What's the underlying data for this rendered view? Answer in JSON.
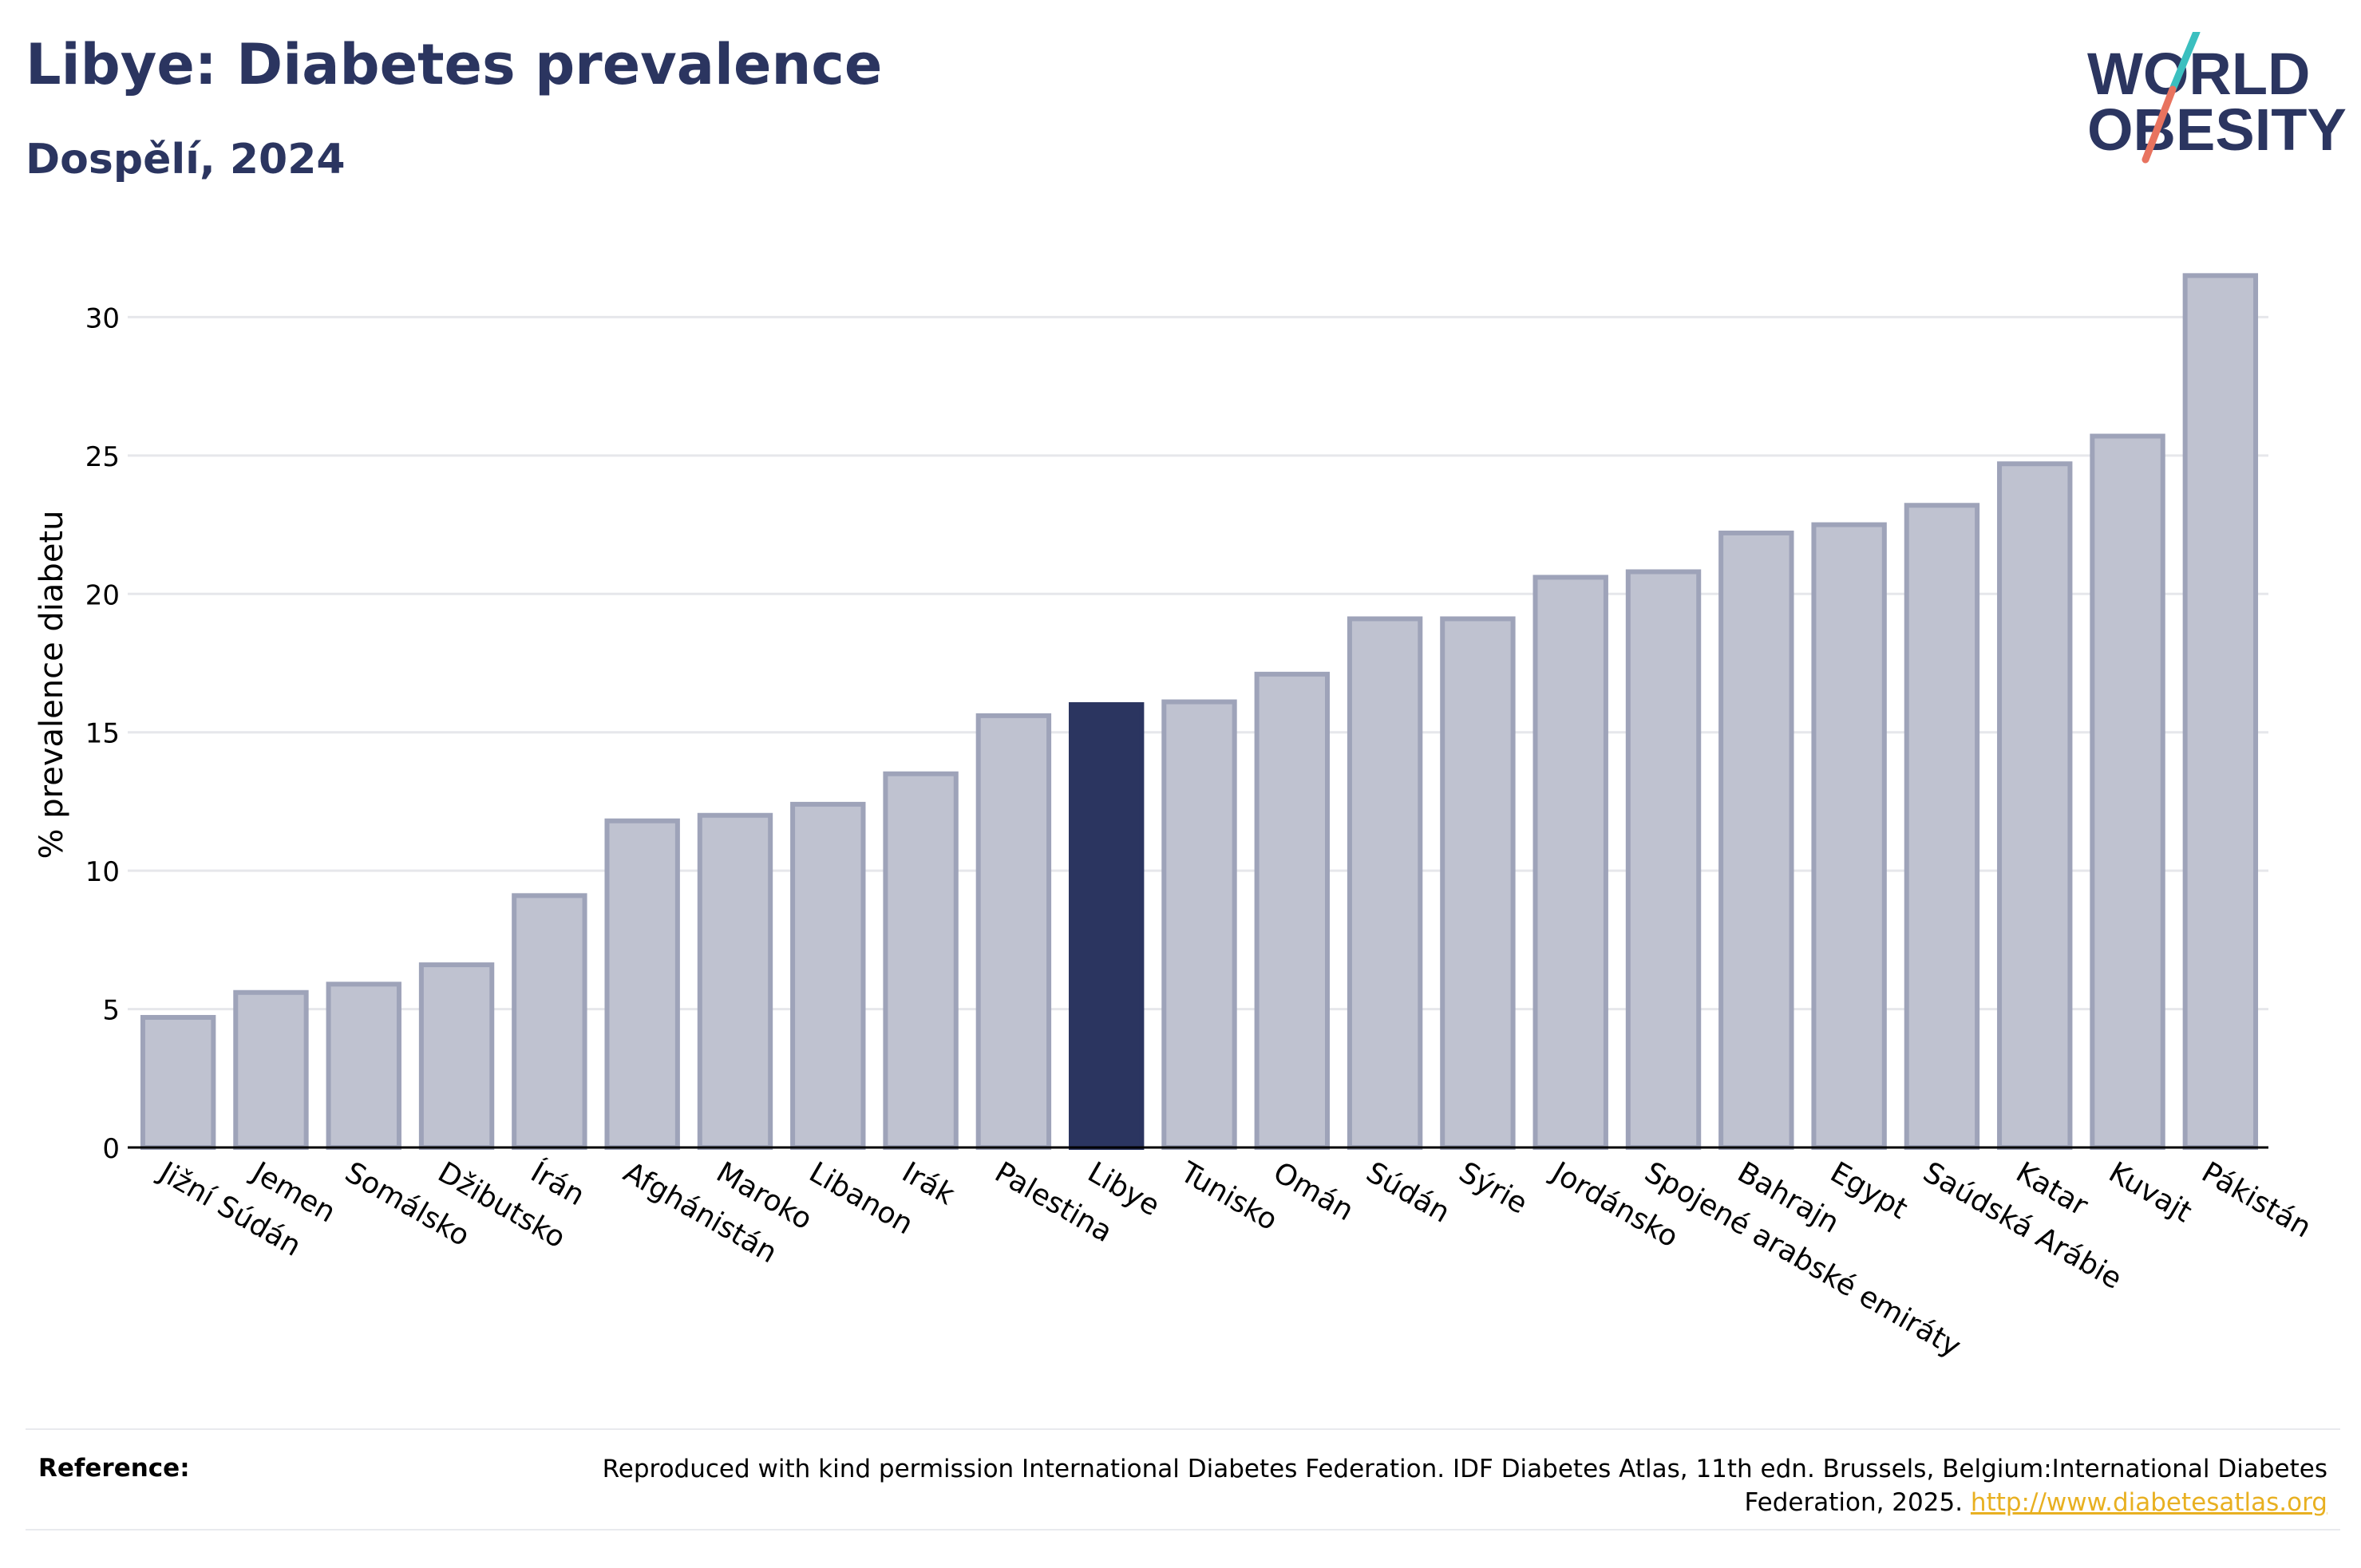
{
  "header": {
    "title": "Libye: Diabetes prevalence",
    "subtitle": "Dospělí, 2024"
  },
  "logo": {
    "line1": "WORLD",
    "line2": "OBESITY",
    "colors": {
      "text": "#2b3560",
      "teal": "#3bbfbf",
      "coral": "#e8735f"
    }
  },
  "chart_data": {
    "type": "bar",
    "title": "Libye: Diabetes prevalence",
    "subtitle": "Dospělí, 2024",
    "xlabel": "",
    "ylabel": "% prevalence diabetu",
    "ylim": [
      0,
      32
    ],
    "yticks": [
      0,
      5,
      10,
      15,
      20,
      25,
      30
    ],
    "grid": true,
    "highlight": "Libye",
    "colors": {
      "bar": "#bfc2d0",
      "bar_border": "#9ea3b9",
      "highlight": "#2b3560"
    },
    "categories": [
      "Jižní Súdán",
      "Jemen",
      "Somálsko",
      "Džibutsko",
      "Írán",
      "Afghánistán",
      "Maroko",
      "Libanon",
      "Irák",
      "Palestina",
      "Libye",
      "Tunisko",
      "Omán",
      "Súdán",
      "Sýrie",
      "Jordánsko",
      "Spojené arabské emiráty",
      "Bahrajn",
      "Egypt",
      "Saúdská Arábie",
      "Katar",
      "Kuvajt",
      "Pákistán"
    ],
    "values": [
      4.7,
      5.6,
      5.9,
      6.6,
      9.1,
      11.8,
      12.0,
      12.4,
      13.5,
      15.6,
      16.0,
      16.1,
      17.1,
      19.1,
      19.1,
      20.6,
      20.8,
      22.2,
      22.5,
      23.2,
      24.7,
      25.7,
      31.5
    ]
  },
  "footer": {
    "reference_label": "Reference:",
    "reference_text": "Reproduced with kind permission International Diabetes Federation. IDF Diabetes Atlas, 11th edn. Brussels, Belgium:International Diabetes Federation, 2025.",
    "reference_link": "http://www.diabetesatlas.org"
  }
}
